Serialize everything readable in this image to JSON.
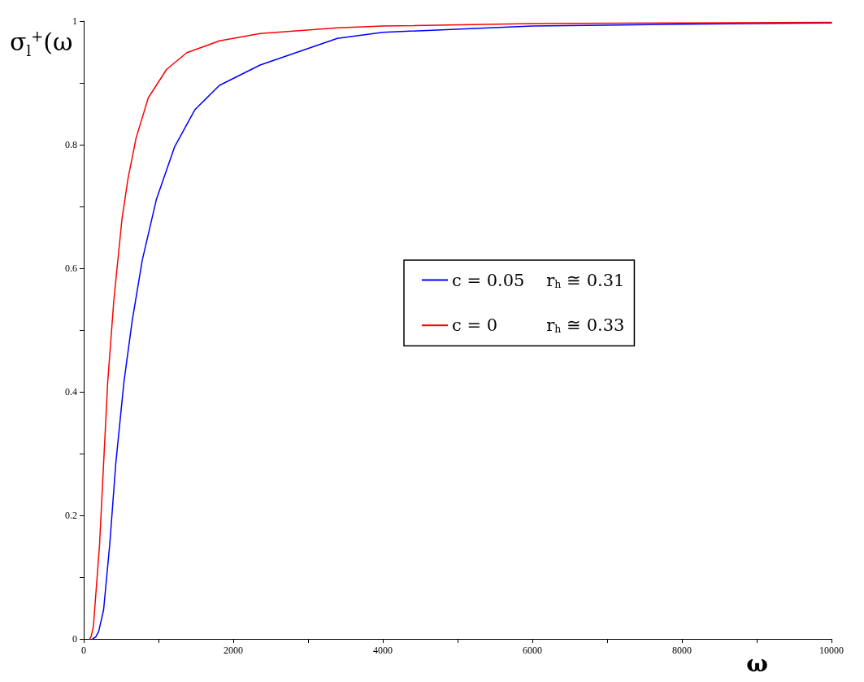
{
  "chart_data": {
    "type": "line",
    "xlabel": "ω",
    "ylabel": "σ$_{l}$$^{+}$(ω",
    "xlim": [
      0,
      10000
    ],
    "ylim": [
      0,
      1
    ],
    "xticks": [
      0,
      {
        "value": 1000,
        "label": null
      },
      2000,
      {
        "value": 3000,
        "label": null
      },
      4000,
      {
        "value": 5000,
        "label": null
      },
      6000,
      {
        "value": 7000,
        "label": null
      },
      8000,
      {
        "value": 9000,
        "label": null
      },
      10000
    ],
    "yticks": [
      0,
      {
        "value": 0.1,
        "label": null
      },
      0.2,
      {
        "value": 0.3,
        "label": null
      },
      0.4,
      {
        "value": 0.5,
        "label": null
      },
      0.6,
      {
        "value": 0.7,
        "label": null
      },
      0.8,
      {
        "value": 0.9,
        "label": null
      },
      1
    ],
    "grid": false,
    "legend": "right",
    "marker": "none",
    "line_style": "solid",
    "series": [
      {
        "name": "c = 0.05    r$_{h}$ ≅ 0.31",
        "color": "#0000ff",
        "x": [
          120,
          160,
          200,
          266,
          348,
          429,
          538,
          647,
          783,
          973,
          1217,
          1489,
          1815,
          2359,
          3391,
          4000,
          6000,
          8000,
          10000
        ],
        "values": [
          0,
          0.003,
          0.012,
          0.047,
          0.153,
          0.284,
          0.416,
          0.514,
          0.613,
          0.712,
          0.797,
          0.857,
          0.896,
          0.929,
          0.972,
          0.982,
          0.992,
          0.995,
          0.997
        ]
      },
      {
        "name": "c = 0         r$_{h}$ ≅ 0.33",
        "color": "#ff0000",
        "x": [
          80,
          100,
          130,
          212,
          266,
          321,
          402,
          511,
          592,
          701,
          864,
          1109,
          1380,
          1815,
          2359,
          3391,
          4000,
          6000,
          8000,
          10000
        ],
        "values": [
          0,
          0.004,
          0.021,
          0.153,
          0.284,
          0.416,
          0.547,
          0.679,
          0.745,
          0.811,
          0.876,
          0.922,
          0.949,
          0.968,
          0.98,
          0.989,
          0.992,
          0.996,
          0.997,
          0.998
        ]
      }
    ]
  }
}
